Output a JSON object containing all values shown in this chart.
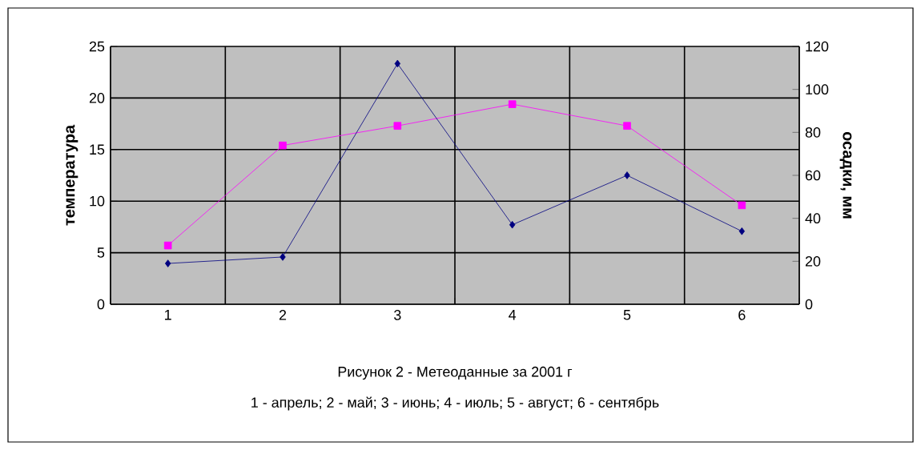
{
  "chart_data": {
    "type": "line",
    "categories": [
      "1",
      "2",
      "3",
      "4",
      "5",
      "6"
    ],
    "series": [
      {
        "color": "#000080",
        "marker": "diamond",
        "axis": "y2",
        "values": [
          19,
          22,
          112,
          37,
          60,
          34
        ]
      },
      {
        "color": "#ff00ff",
        "marker": "square",
        "values": [
          5.7,
          15.4,
          17.3,
          19.4,
          17.3,
          9.6
        ]
      }
    ],
    "ylabel": "температура",
    "y2label": "осадки, мм",
    "ylim": [
      0,
      25
    ],
    "yticks": [
      0,
      5,
      10,
      15,
      20,
      25
    ],
    "y2lim": [
      0,
      120
    ],
    "y2ticks": [
      0,
      20,
      40,
      60,
      80,
      100,
      120
    ],
    "grid": true,
    "annotations": [
      "Рисунок 2 - Метеоданные за 2001 г",
      "1 - апрель; 2 - май; 3 - июнь; 4 - июль; 5 - август; 6 - сентябрь"
    ]
  }
}
